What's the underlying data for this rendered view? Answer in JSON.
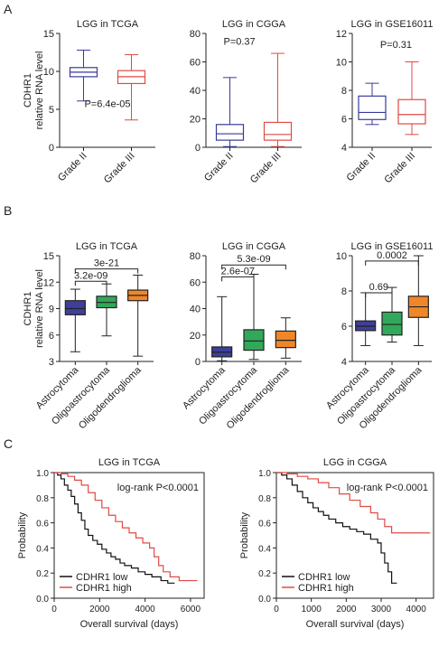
{
  "panels": [
    "A",
    "B",
    "C"
  ],
  "colors": {
    "blue": "#3a3a9a",
    "red": "#e04a44",
    "navy": "#3f3f9a",
    "green": "#32a85a",
    "orange": "#f0862a",
    "black": "#111111"
  },
  "ylabel_lines": [
    "CDHR1",
    "relative RNA level"
  ],
  "chart_data": [
    {
      "type": "box",
      "panel": "A",
      "title": "LGG in TCGA",
      "ylim": [
        0,
        15
      ],
      "yticks": [
        0,
        5,
        10,
        15
      ],
      "categories": [
        "Grade II",
        "Grade III"
      ],
      "boxes": [
        {
          "min": 6.1,
          "q1": 9.3,
          "median": 9.9,
          "q3": 10.5,
          "max": 12.8,
          "color": "#3a3a9a"
        },
        {
          "min": 3.6,
          "q1": 8.4,
          "median": 9.3,
          "q3": 10.1,
          "max": 12.2,
          "color": "#e04a44"
        }
      ],
      "annotations": [
        {
          "text": "P=6.4e-05",
          "x": 1.5,
          "y": 5.3
        }
      ]
    },
    {
      "type": "box",
      "panel": "A",
      "title": "LGG in CGGA",
      "ylim": [
        0,
        80
      ],
      "yticks": [
        0,
        20,
        40,
        60,
        80
      ],
      "categories": [
        "Grade II",
        "Grade III"
      ],
      "boxes": [
        {
          "min": 0.5,
          "q1": 5,
          "median": 9.5,
          "q3": 16,
          "max": 49,
          "color": "#3a3a9a"
        },
        {
          "min": 0.5,
          "q1": 5,
          "median": 9,
          "q3": 17.5,
          "max": 66,
          "color": "#e04a44"
        }
      ],
      "annotations": [
        {
          "text": "P=0.37",
          "x": 1.2,
          "y": 72
        }
      ]
    },
    {
      "type": "box",
      "panel": "A",
      "title": "LGG in GSE16011",
      "ylim": [
        4,
        12
      ],
      "yticks": [
        4,
        6,
        8,
        10,
        12
      ],
      "categories": [
        "Grade II",
        "Grade III"
      ],
      "boxes": [
        {
          "min": 5.6,
          "q1": 5.95,
          "median": 6.45,
          "q3": 7.6,
          "max": 8.5,
          "color": "#3a3a9a"
        },
        {
          "min": 4.9,
          "q1": 5.65,
          "median": 6.3,
          "q3": 7.35,
          "max": 10,
          "color": "#e04a44"
        }
      ],
      "annotations": [
        {
          "text": "P=0.31",
          "x": 1.6,
          "y": 11
        }
      ]
    },
    {
      "type": "box",
      "panel": "B",
      "title": "LGG in TCGA",
      "ylim": [
        3,
        15
      ],
      "yticks": [
        3,
        6,
        9,
        12,
        15
      ],
      "categories": [
        "Astrocytoma",
        "Oligoastrocytoma",
        "Oligodendroglioma"
      ],
      "boxes": [
        {
          "min": 4.1,
          "q1": 8.3,
          "median": 9.0,
          "q3": 9.9,
          "max": 11.2,
          "color": "#3f3f9a"
        },
        {
          "min": 5.9,
          "q1": 9.1,
          "median": 9.7,
          "q3": 10.4,
          "max": 11.8,
          "color": "#32a85a"
        },
        {
          "min": 3.6,
          "q1": 9.9,
          "median": 10.5,
          "q3": 11.1,
          "max": 12.8,
          "color": "#f0862a"
        }
      ],
      "brackets": [
        {
          "from": 0,
          "to": 1,
          "y": 12.1,
          "text": "3.2e-09"
        },
        {
          "from": 0,
          "to": 2,
          "y": 13.5,
          "text": "3e-21"
        }
      ]
    },
    {
      "type": "box",
      "panel": "B",
      "title": "LGG in CGGA",
      "ylim": [
        0,
        80
      ],
      "yticks": [
        0,
        20,
        40,
        60,
        80
      ],
      "categories": [
        "Astrocytoma",
        "Oligoastrocytoma",
        "Oligodendroglioma"
      ],
      "boxes": [
        {
          "min": 0.5,
          "q1": 3.5,
          "median": 7,
          "q3": 11,
          "max": 49,
          "color": "#3f3f9a"
        },
        {
          "min": 1.5,
          "q1": 8.5,
          "median": 15.5,
          "q3": 24,
          "max": 66,
          "color": "#32a85a"
        },
        {
          "min": 2.5,
          "q1": 10.5,
          "median": 16,
          "q3": 23,
          "max": 33,
          "color": "#f0862a"
        }
      ],
      "brackets": [
        {
          "from": 0,
          "to": 1,
          "y": 64,
          "text": "2.6e-07"
        },
        {
          "from": 0,
          "to": 2,
          "y": 73,
          "text": "5.3e-09"
        }
      ]
    },
    {
      "type": "box",
      "panel": "B",
      "title": "LGG in GSE16011",
      "ylim": [
        4,
        10
      ],
      "yticks": [
        4,
        6,
        8,
        10
      ],
      "categories": [
        "Astrocytoma",
        "Oligoastrocytoma",
        "Oligodendroglioma"
      ],
      "boxes": [
        {
          "min": 4.9,
          "q1": 5.75,
          "median": 6.0,
          "q3": 6.3,
          "max": 7.9,
          "color": "#3f3f9a"
        },
        {
          "min": 5.1,
          "q1": 5.5,
          "median": 6.1,
          "q3": 6.8,
          "max": 8.2,
          "color": "#32a85a"
        },
        {
          "min": 4.9,
          "q1": 6.5,
          "median": 7.1,
          "q3": 7.7,
          "max": 10.0,
          "color": "#f0862a"
        }
      ],
      "brackets": [
        {
          "from": 0,
          "to": 1,
          "y": 7.9,
          "text": "0.69"
        },
        {
          "from": 0,
          "to": 2,
          "y": 9.7,
          "text": "0.0002"
        }
      ]
    },
    {
      "type": "survival",
      "panel": "C",
      "title": "LGG in TCGA",
      "xlabel": "Overall survival (days)",
      "ylabel": "Probability",
      "xlim": [
        0,
        6600
      ],
      "ylim": [
        0,
        1
      ],
      "xticks": [
        0,
        2000,
        4000,
        6000
      ],
      "yticks": [
        0,
        0.2,
        0.4,
        0.6,
        0.8,
        1.0
      ],
      "annotation": "log-rank P<0.0001",
      "series": [
        {
          "name": "CDHR1 low",
          "color": "#111111",
          "points": [
            [
              0,
              1
            ],
            [
              150,
              0.98
            ],
            [
              300,
              0.95
            ],
            [
              450,
              0.9
            ],
            [
              600,
              0.86
            ],
            [
              750,
              0.81
            ],
            [
              900,
              0.75
            ],
            [
              1050,
              0.68
            ],
            [
              1200,
              0.62
            ],
            [
              1350,
              0.55
            ],
            [
              1500,
              0.5
            ],
            [
              1700,
              0.46
            ],
            [
              1900,
              0.43
            ],
            [
              2100,
              0.39
            ],
            [
              2300,
              0.36
            ],
            [
              2500,
              0.33
            ],
            [
              2700,
              0.31
            ],
            [
              2900,
              0.28
            ],
            [
              3100,
              0.26
            ],
            [
              3400,
              0.24
            ],
            [
              3700,
              0.21
            ],
            [
              4000,
              0.19
            ],
            [
              4300,
              0.17
            ],
            [
              4700,
              0.14
            ],
            [
              5000,
              0.12
            ],
            [
              5300,
              0.12
            ]
          ]
        },
        {
          "name": "CDHR1 high",
          "color": "#e04a44",
          "points": [
            [
              0,
              1
            ],
            [
              300,
              0.99
            ],
            [
              600,
              0.97
            ],
            [
              900,
              0.94
            ],
            [
              1200,
              0.9
            ],
            [
              1500,
              0.84
            ],
            [
              1800,
              0.78
            ],
            [
              2100,
              0.72
            ],
            [
              2400,
              0.66
            ],
            [
              2700,
              0.61
            ],
            [
              3000,
              0.56
            ],
            [
              3300,
              0.52
            ],
            [
              3600,
              0.48
            ],
            [
              3900,
              0.44
            ],
            [
              4200,
              0.4
            ],
            [
              4400,
              0.33
            ],
            [
              4600,
              0.26
            ],
            [
              4800,
              0.21
            ],
            [
              5100,
              0.17
            ],
            [
              5500,
              0.14
            ],
            [
              6300,
              0.14
            ]
          ]
        }
      ]
    },
    {
      "type": "survival",
      "panel": "C",
      "title": "LGG in CGGA",
      "xlabel": "Overall survival (days)",
      "ylabel": "Probability",
      "xlim": [
        0,
        4500
      ],
      "ylim": [
        0,
        1
      ],
      "xticks": [
        0,
        1000,
        2000,
        3000,
        4000
      ],
      "yticks": [
        0,
        0.2,
        0.4,
        0.6,
        0.8,
        1.0
      ],
      "annotation": "log-rank P<0.0001",
      "series": [
        {
          "name": "CDHR1 low",
          "color": "#111111",
          "points": [
            [
              0,
              1
            ],
            [
              150,
              0.98
            ],
            [
              300,
              0.95
            ],
            [
              450,
              0.9
            ],
            [
              600,
              0.85
            ],
            [
              750,
              0.8
            ],
            [
              900,
              0.76
            ],
            [
              1050,
              0.72
            ],
            [
              1200,
              0.69
            ],
            [
              1350,
              0.66
            ],
            [
              1500,
              0.63
            ],
            [
              1700,
              0.6
            ],
            [
              1900,
              0.57
            ],
            [
              2100,
              0.55
            ],
            [
              2300,
              0.53
            ],
            [
              2500,
              0.51
            ],
            [
              2700,
              0.47
            ],
            [
              2900,
              0.44
            ],
            [
              3000,
              0.36
            ],
            [
              3100,
              0.28
            ],
            [
              3200,
              0.21
            ],
            [
              3300,
              0.12
            ],
            [
              3450,
              0.12
            ]
          ]
        },
        {
          "name": "CDHR1 high",
          "color": "#e04a44",
          "points": [
            [
              0,
              1
            ],
            [
              300,
              0.99
            ],
            [
              600,
              0.97
            ],
            [
              900,
              0.95
            ],
            [
              1200,
              0.92
            ],
            [
              1500,
              0.88
            ],
            [
              1800,
              0.83
            ],
            [
              2100,
              0.78
            ],
            [
              2400,
              0.73
            ],
            [
              2700,
              0.68
            ],
            [
              2900,
              0.63
            ],
            [
              3100,
              0.57
            ],
            [
              3300,
              0.52
            ],
            [
              4400,
              0.52
            ]
          ]
        }
      ]
    }
  ]
}
